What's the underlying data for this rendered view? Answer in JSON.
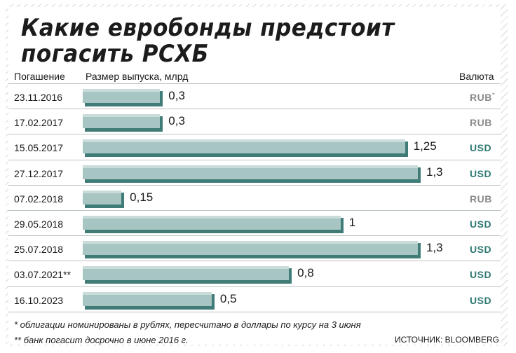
{
  "title": "Какие евробонды предстоит погасить РСХБ",
  "headers": {
    "date": "Погашение",
    "size": "Размер выпуска, млрд",
    "currency": "Валюта"
  },
  "chart_data": {
    "type": "bar",
    "orientation": "horizontal",
    "title": "Какие евробонды предстоит погасить РСХБ",
    "xlabel": "Размер выпуска, млрд",
    "ylabel": "Погашение",
    "categories": [
      "23.11.2016",
      "17.02.2017",
      "15.05.2017",
      "27.12.2017",
      "07.02.2018",
      "29.05.2018",
      "25.07.2018",
      "03.07.2021**",
      "16.10.2023"
    ],
    "values": [
      0.3,
      0.3,
      1.25,
      1.3,
      0.15,
      1,
      1.3,
      0.8,
      0.5
    ],
    "value_labels": [
      "0,3",
      "0,3",
      "1,25",
      "1,3",
      "0,15",
      "1",
      "1,3",
      "0,8",
      "0,5"
    ],
    "currencies": [
      "RUB",
      "RUB",
      "USD",
      "USD",
      "RUB",
      "USD",
      "USD",
      "USD",
      "USD"
    ],
    "currency_marks": [
      "*",
      "",
      "",
      "",
      "",
      "",
      "",
      "",
      ""
    ],
    "xlim": [
      0,
      1.3
    ],
    "grid": false,
    "colors": {
      "bar": "#a7c5c2",
      "bar_top": "#c9dcda",
      "bar_side": "#3f7c78",
      "usd": "#2f7a74",
      "rub": "#8a8a8a"
    }
  },
  "footnotes": {
    "note1": "* облигации номинированы в рублях, пересчитано в доллары по курсу на 3 июня",
    "note2": "** банк погасит досрочно в июне 2016 г.",
    "source": "ИСТОЧНИК: BLOOMBERG"
  }
}
